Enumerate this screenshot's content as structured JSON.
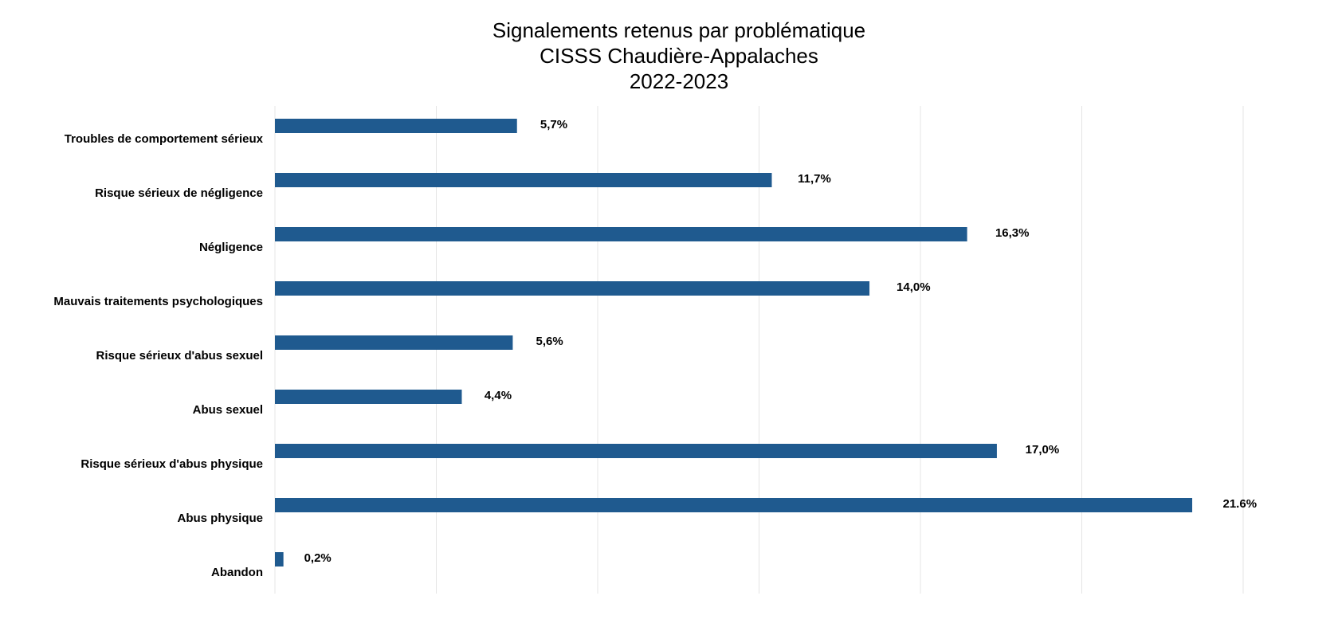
{
  "chart_data": {
    "type": "hbar",
    "title": [
      "Signalements retenus par problématique",
      "CISSS Chaudière-Appalaches",
      "2022-2023"
    ],
    "categories": [
      "Troubles de comportement sérieux",
      "Risque sérieux de négligence",
      "Négligence",
      "Mauvais traitements psychologiques",
      "Risque sérieux d'abus sexuel",
      "Abus sexuel",
      "Risque sérieux d'abus physique",
      "Abus physique",
      "Abandon"
    ],
    "values": [
      5.7,
      11.7,
      16.3,
      14.0,
      5.6,
      4.4,
      17.0,
      21.6,
      0.2
    ],
    "value_labels": [
      "5,7%",
      "11,7%",
      "16,3%",
      "14,0%",
      "5,6%",
      "4,4%",
      "17,0%",
      "21.6%",
      "0,2%"
    ],
    "color": "#1f5a8f",
    "xlim": [
      0,
      22.8
    ],
    "xticks": [
      0,
      3.8,
      7.6,
      11.4,
      15.2,
      19,
      22.8
    ],
    "grid": true
  }
}
